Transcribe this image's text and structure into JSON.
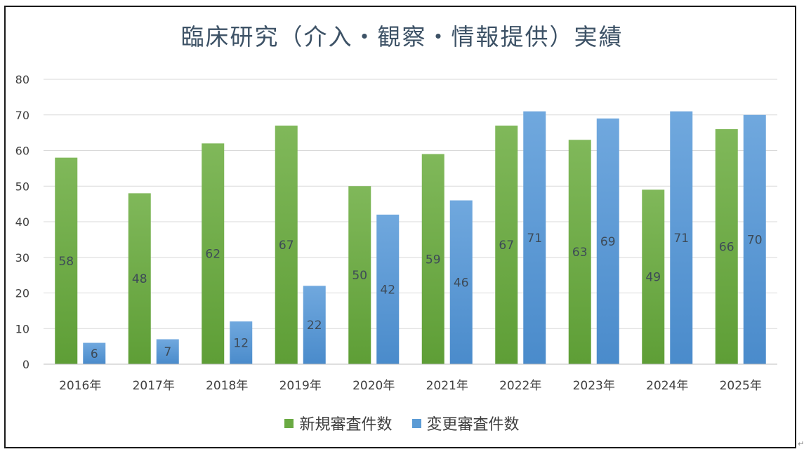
{
  "chart_data": {
    "type": "bar",
    "title": "臨床研究（介入・観察・情報提供）実績",
    "categories": [
      "2016年",
      "2017年",
      "2018年",
      "2019年",
      "2020年",
      "2021年",
      "2022年",
      "2023年",
      "2024年",
      "2025年"
    ],
    "series": [
      {
        "name": "新規審査件数",
        "values": [
          58,
          48,
          62,
          67,
          50,
          59,
          67,
          63,
          49,
          66
        ],
        "color": "#6aaa43"
      },
      {
        "name": "変更審査件数",
        "values": [
          6,
          7,
          12,
          22,
          42,
          46,
          71,
          69,
          71,
          70
        ],
        "color": "#5b9bd5"
      }
    ],
    "ylim": [
      0,
      80
    ],
    "yticks": [
      0,
      10,
      20,
      30,
      40,
      50,
      60,
      70,
      80
    ],
    "grid": true,
    "data_labels": true,
    "legend_position": "bottom"
  }
}
